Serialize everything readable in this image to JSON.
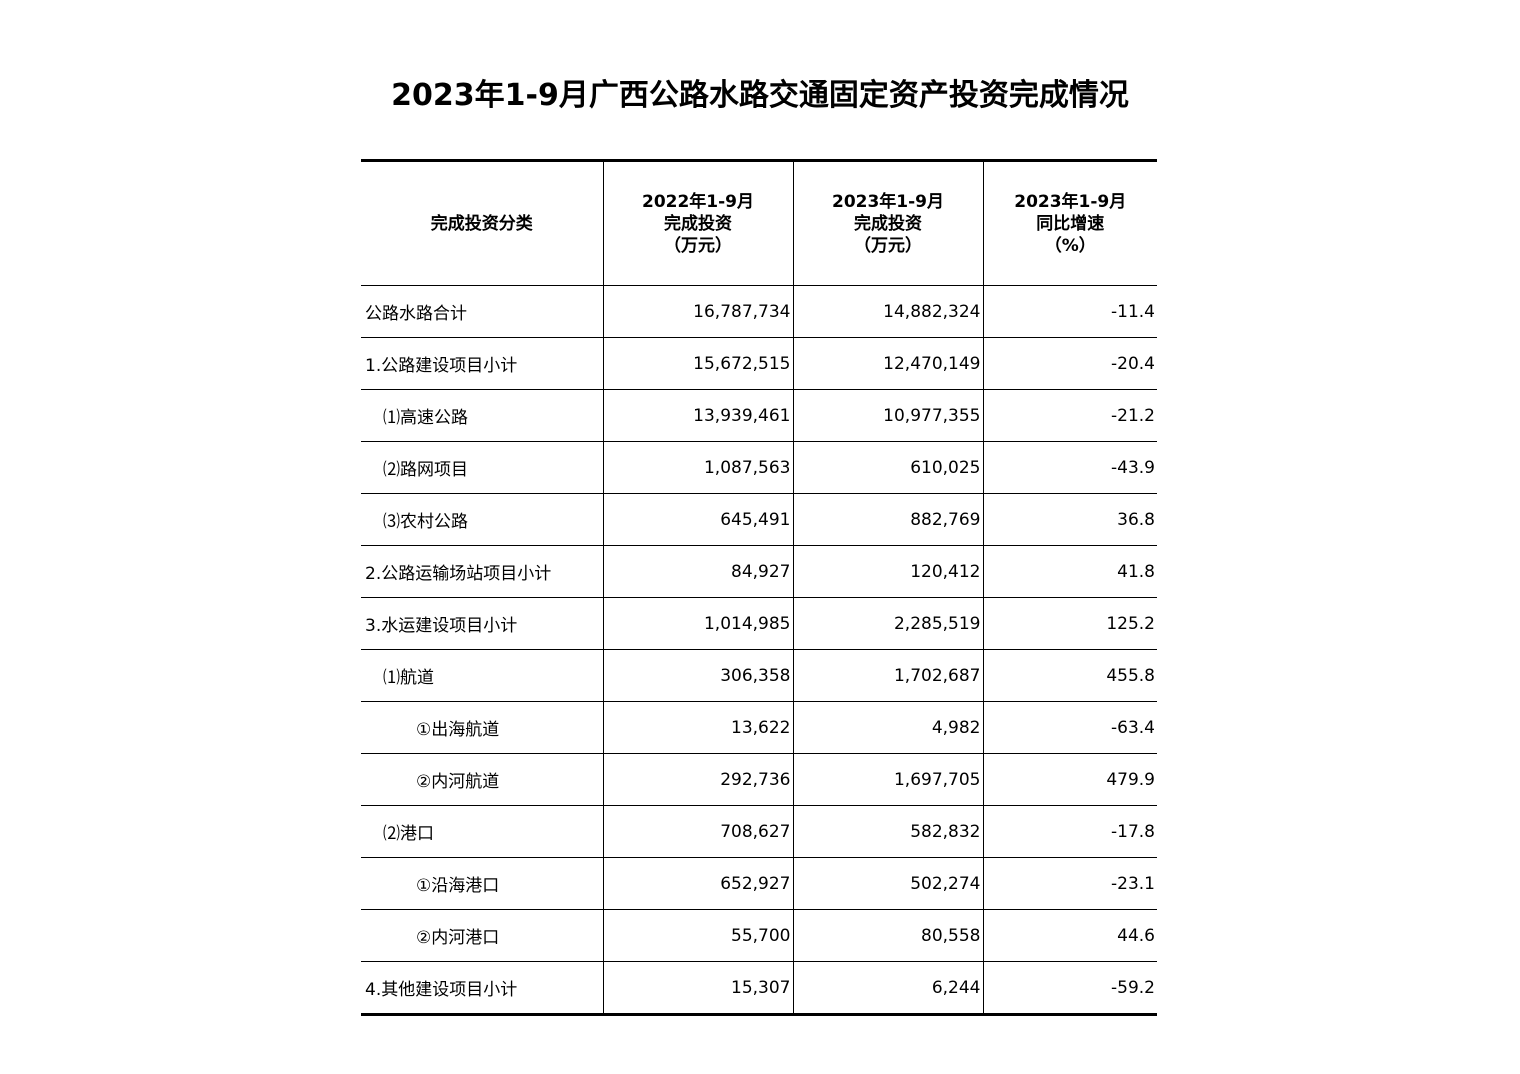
{
  "title": "2023年1-9月广西公路水路交通固定资产投资完成情况",
  "table": {
    "headers": [
      {
        "lines": [
          "完成投资分类"
        ]
      },
      {
        "lines": [
          "2022年1-9月",
          "完成投资",
          "（万元）"
        ]
      },
      {
        "lines": [
          "2023年1-9月",
          "完成投资",
          "（万元）"
        ]
      },
      {
        "lines": [
          "2023年1-9月",
          "同比增速",
          "（%）"
        ]
      }
    ],
    "rows": [
      {
        "category": "公路水路合计",
        "level": 0,
        "v2022": "16,787,734",
        "v2023": "14,882,324",
        "growth": "-11.4"
      },
      {
        "category": "1.公路建设项目小计",
        "level": 0,
        "v2022": "15,672,515",
        "v2023": "12,470,149",
        "growth": "-20.4"
      },
      {
        "category": "⑴高速公路",
        "level": 1,
        "v2022": "13,939,461",
        "v2023": "10,977,355",
        "growth": "-21.2"
      },
      {
        "category": "⑵路网项目",
        "level": 1,
        "v2022": "1,087,563",
        "v2023": "610,025",
        "growth": "-43.9"
      },
      {
        "category": "⑶农村公路",
        "level": 1,
        "v2022": "645,491",
        "v2023": "882,769",
        "growth": "36.8"
      },
      {
        "category": "2.公路运输场站项目小计",
        "level": 0,
        "v2022": "84,927",
        "v2023": "120,412",
        "growth": "41.8"
      },
      {
        "category": "3.水运建设项目小计",
        "level": 0,
        "v2022": "1,014,985",
        "v2023": "2,285,519",
        "growth": "125.2"
      },
      {
        "category": "⑴航道",
        "level": 1,
        "v2022": "306,358",
        "v2023": "1,702,687",
        "growth": "455.8"
      },
      {
        "category": "①出海航道",
        "level": 2,
        "v2022": "13,622",
        "v2023": "4,982",
        "growth": "-63.4"
      },
      {
        "category": "②内河航道",
        "level": 2,
        "v2022": "292,736",
        "v2023": "1,697,705",
        "growth": "479.9"
      },
      {
        "category": "⑵港口",
        "level": 1,
        "v2022": "708,627",
        "v2023": "582,832",
        "growth": "-17.8"
      },
      {
        "category": "①沿海港口",
        "level": 2,
        "v2022": "652,927",
        "v2023": "502,274",
        "growth": "-23.1"
      },
      {
        "category": "②内河港口",
        "level": 2,
        "v2022": "55,700",
        "v2023": "80,558",
        "growth": "44.6"
      },
      {
        "category": "4.其他建设项目小计",
        "level": 0,
        "v2022": "15,307",
        "v2023": "6,244",
        "growth": "-59.2"
      }
    ]
  }
}
